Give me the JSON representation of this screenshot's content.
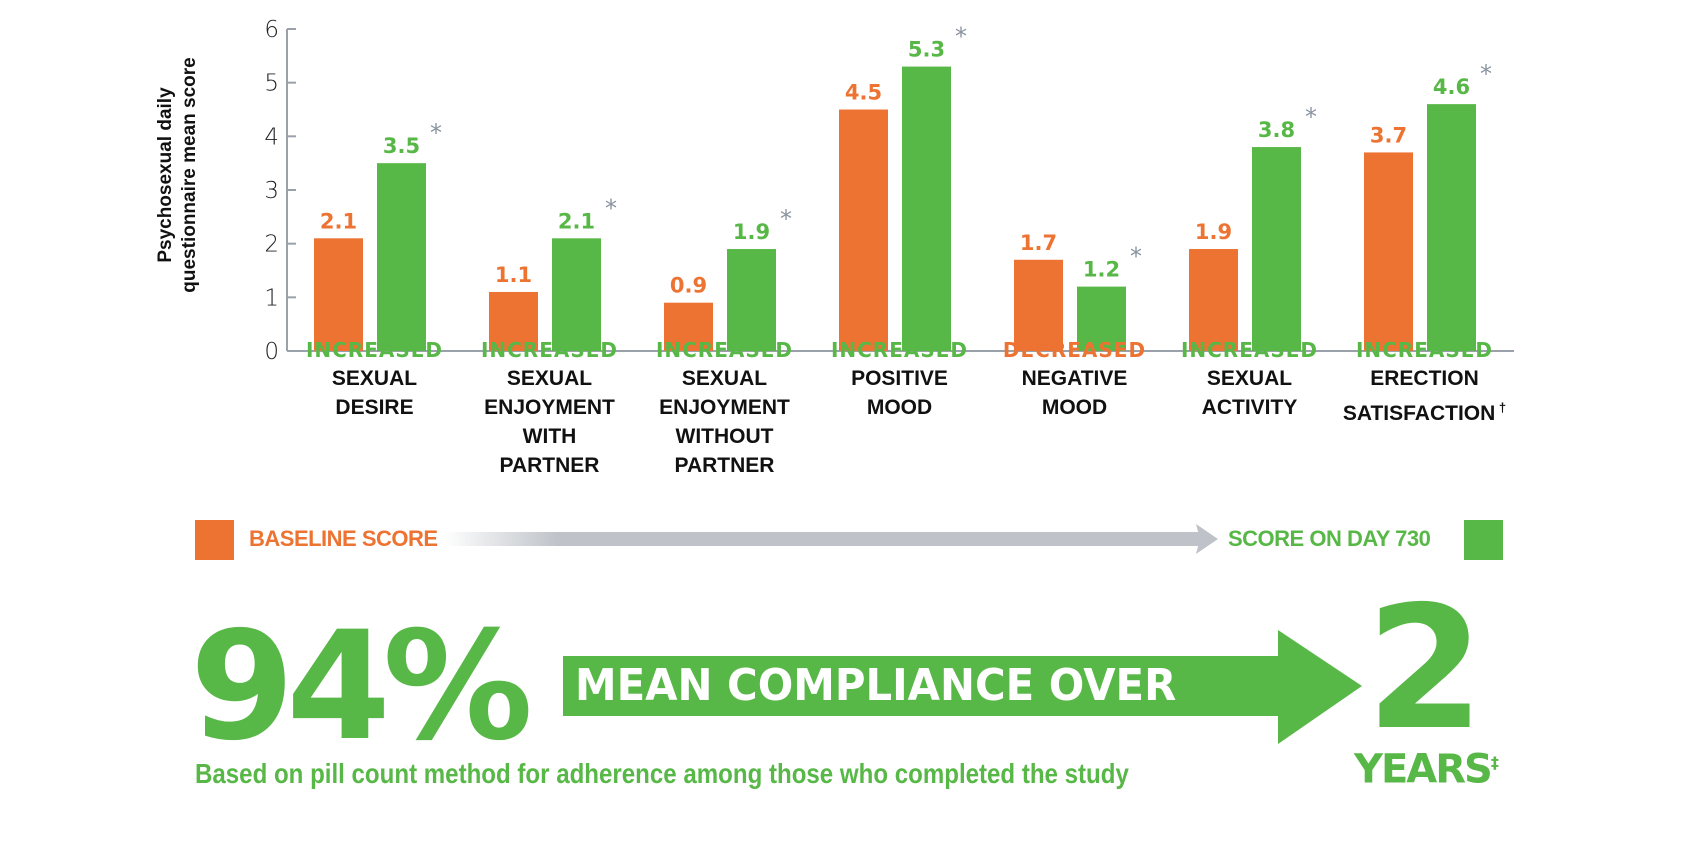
{
  "chart_data": {
    "type": "bar",
    "ylabel": "Psychosexual daily questionnaire mean score",
    "ylim": [
      0,
      6
    ],
    "yticks": [
      "0",
      "1",
      "2",
      "3",
      "4",
      "5",
      "6"
    ],
    "grid": false,
    "categories": [
      {
        "direction": "INCREASED",
        "lines": [
          "SEXUAL",
          "DESIRE"
        ],
        "footnote": ""
      },
      {
        "direction": "INCREASED",
        "lines": [
          "SEXUAL",
          "ENJOYMENT",
          "WITH",
          "PARTNER"
        ],
        "footnote": ""
      },
      {
        "direction": "INCREASED",
        "lines": [
          "SEXUAL",
          "ENJOYMENT",
          "WITHOUT",
          "PARTNER"
        ],
        "footnote": ""
      },
      {
        "direction": "INCREASED",
        "lines": [
          "POSITIVE",
          "MOOD"
        ],
        "footnote": ""
      },
      {
        "direction": "DECREASED",
        "lines": [
          "NEGATIVE",
          "MOOD"
        ],
        "footnote": ""
      },
      {
        "direction": "INCREASED",
        "lines": [
          "SEXUAL",
          "ACTIVITY"
        ],
        "footnote": ""
      },
      {
        "direction": "INCREASED",
        "lines": [
          "ERECTION",
          "SATISFACTION"
        ],
        "footnote": "†"
      }
    ],
    "series": [
      {
        "name": "BASELINE SCORE",
        "color": "#ED7332",
        "values": [
          2.1,
          1.1,
          0.9,
          4.5,
          1.7,
          1.9,
          3.7
        ],
        "labels": [
          "2.1",
          "1.1",
          "0.9",
          "4.5",
          "1.7",
          "1.9",
          "3.7"
        ]
      },
      {
        "name": "SCORE ON DAY 730",
        "color": "#58B847",
        "values": [
          3.5,
          2.1,
          1.9,
          5.3,
          1.2,
          3.8,
          4.6
        ],
        "labels": [
          "3.5",
          "2.1",
          "1.9",
          "5.3",
          "1.2",
          "3.8",
          "4.6"
        ],
        "marker": "*"
      }
    ],
    "direction_colors": {
      "INCREASED": "#58B847",
      "DECREASED": "#ED7332"
    },
    "legend": "bottom",
    "legend_arrow_color": "#BFC3C9",
    "asterisk_color": "#8A93A0"
  },
  "summary": {
    "percent": "94%",
    "arrow_text": "MEAN COMPLIANCE OVER",
    "number": "2",
    "unit": "YEARS",
    "unit_footnote": "‡",
    "footnote": "Based on pill count method for adherence among those who completed the study"
  }
}
